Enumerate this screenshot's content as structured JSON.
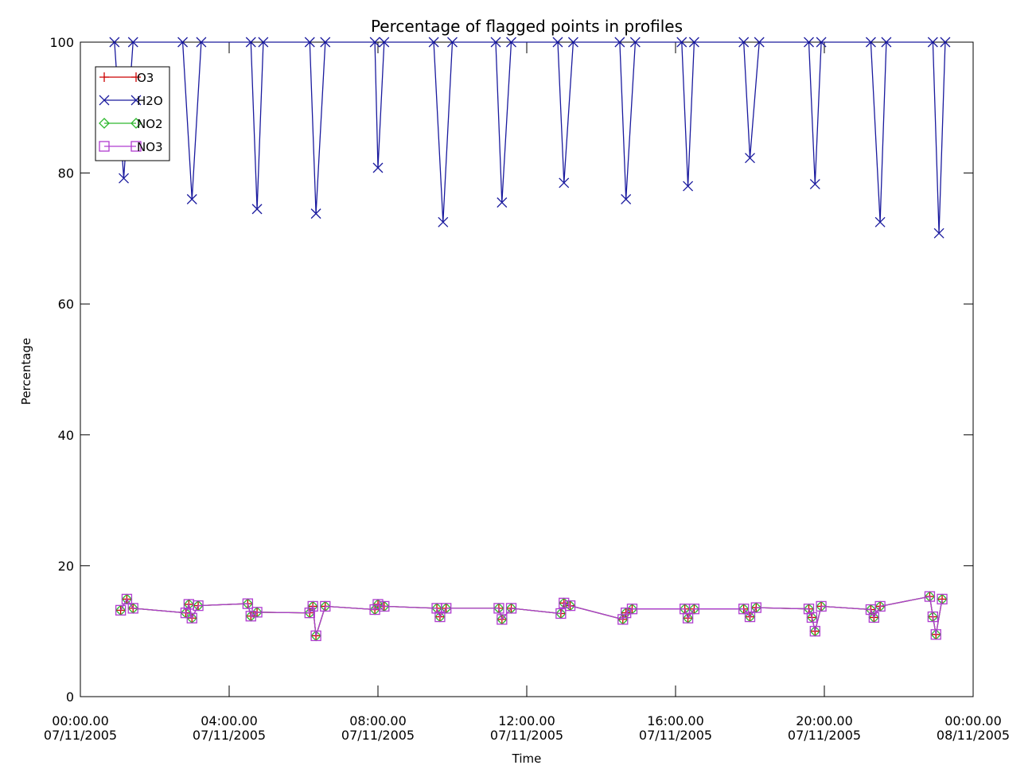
{
  "chart_data": {
    "type": "line",
    "title": "Percentage of flagged points in profiles",
    "xlabel": "Time",
    "ylabel": "Percentage",
    "xlim": [
      "07/11/2005 00:00",
      "08/11/2005 00:00"
    ],
    "ylim": [
      0,
      100
    ],
    "x_ticks": [
      {
        "time": "00:00.00",
        "date": "07/11/2005"
      },
      {
        "time": "04:00.00",
        "date": "07/11/2005"
      },
      {
        "time": "08:00.00",
        "date": "07/11/2005"
      },
      {
        "time": "12:00.00",
        "date": "07/11/2005"
      },
      {
        "time": "16:00.00",
        "date": "07/11/2005"
      },
      {
        "time": "20:00.00",
        "date": "07/11/2005"
      },
      {
        "time": "00:00.00",
        "date": "08/11/2005"
      }
    ],
    "y_ticks": [
      "0",
      "20",
      "40",
      "60",
      "80",
      "100"
    ],
    "grid": false,
    "legend_position": "top-left",
    "series": [
      {
        "name": "O3",
        "color": "#cc0000",
        "marker": "plus",
        "points": [
          [
            "07/11/2005 01:05",
            13.2
          ],
          [
            "07/11/2005 01:15",
            14.9
          ],
          [
            "07/11/2005 01:25",
            13.5
          ],
          [
            "07/11/2005 02:50",
            12.8
          ],
          [
            "07/11/2005 02:55",
            14.1
          ],
          [
            "07/11/2005 03:00",
            12.0
          ],
          [
            "07/11/2005 03:10",
            13.9
          ],
          [
            "07/11/2005 04:30",
            14.2
          ],
          [
            "07/11/2005 04:35",
            12.3
          ],
          [
            "07/11/2005 04:45",
            12.9
          ],
          [
            "07/11/2005 06:10",
            12.8
          ],
          [
            "07/11/2005 06:15",
            13.8
          ],
          [
            "07/11/2005 06:20",
            9.3
          ],
          [
            "07/11/2005 06:35",
            13.8
          ],
          [
            "07/11/2005 07:55",
            13.3
          ],
          [
            "07/11/2005 08:00",
            14.1
          ],
          [
            "07/11/2005 08:10",
            13.8
          ],
          [
            "07/11/2005 09:35",
            13.5
          ],
          [
            "07/11/2005 09:40",
            12.2
          ],
          [
            "07/11/2005 09:50",
            13.5
          ],
          [
            "07/11/2005 11:15",
            13.5
          ],
          [
            "07/11/2005 11:20",
            11.8
          ],
          [
            "07/11/2005 11:35",
            13.5
          ],
          [
            "07/11/2005 12:55",
            12.7
          ],
          [
            "07/11/2005 13:00",
            14.3
          ],
          [
            "07/11/2005 13:10",
            13.9
          ],
          [
            "07/11/2005 14:35",
            11.8
          ],
          [
            "07/11/2005 14:40",
            12.8
          ],
          [
            "07/11/2005 14:50",
            13.4
          ],
          [
            "07/11/2005 16:15",
            13.4
          ],
          [
            "07/11/2005 16:20",
            12.0
          ],
          [
            "07/11/2005 16:30",
            13.4
          ],
          [
            "07/11/2005 17:50",
            13.4
          ],
          [
            "07/11/2005 18:00",
            12.2
          ],
          [
            "07/11/2005 18:10",
            13.6
          ],
          [
            "07/11/2005 19:35",
            13.4
          ],
          [
            "07/11/2005 19:40",
            12.1
          ],
          [
            "07/11/2005 19:45",
            10.0
          ],
          [
            "07/11/2005 19:55",
            13.8
          ],
          [
            "07/11/2005 21:15",
            13.3
          ],
          [
            "07/11/2005 21:20",
            12.1
          ],
          [
            "07/11/2005 21:30",
            13.8
          ],
          [
            "07/11/2005 22:50",
            15.3
          ],
          [
            "07/11/2005 22:55",
            12.2
          ],
          [
            "07/11/2005 23:00",
            9.5
          ],
          [
            "07/11/2005 23:10",
            14.9
          ]
        ]
      },
      {
        "name": "H2O",
        "color": "#1a1a9e",
        "marker": "x",
        "points": [
          [
            "07/11/2005 00:55",
            100
          ],
          [
            "07/11/2005 01:10",
            79.2
          ],
          [
            "07/11/2005 01:25",
            100
          ],
          [
            "07/11/2005 02:45",
            100
          ],
          [
            "07/11/2005 03:00",
            76.0
          ],
          [
            "07/11/2005 03:15",
            100
          ],
          [
            "07/11/2005 04:35",
            100
          ],
          [
            "07/11/2005 04:45",
            74.5
          ],
          [
            "07/11/2005 04:55",
            100
          ],
          [
            "07/11/2005 06:10",
            100
          ],
          [
            "07/11/2005 06:20",
            73.8
          ],
          [
            "07/11/2005 06:35",
            100
          ],
          [
            "07/11/2005 07:55",
            100
          ],
          [
            "07/11/2005 08:00",
            80.8
          ],
          [
            "07/11/2005 08:10",
            100
          ],
          [
            "07/11/2005 09:30",
            100
          ],
          [
            "07/11/2005 09:45",
            72.5
          ],
          [
            "07/11/2005 10:00",
            100
          ],
          [
            "07/11/2005 11:10",
            100
          ],
          [
            "07/11/2005 11:20",
            75.5
          ],
          [
            "07/11/2005 11:35",
            100
          ],
          [
            "07/11/2005 12:50",
            100
          ],
          [
            "07/11/2005 13:00",
            78.5
          ],
          [
            "07/11/2005 13:15",
            100
          ],
          [
            "07/11/2005 14:30",
            100
          ],
          [
            "07/11/2005 14:40",
            76.0
          ],
          [
            "07/11/2005 14:55",
            100
          ],
          [
            "07/11/2005 16:10",
            100
          ],
          [
            "07/11/2005 16:20",
            78.0
          ],
          [
            "07/11/2005 16:30",
            100
          ],
          [
            "07/11/2005 17:50",
            100
          ],
          [
            "07/11/2005 18:00",
            82.3
          ],
          [
            "07/11/2005 18:15",
            100
          ],
          [
            "07/11/2005 19:35",
            100
          ],
          [
            "07/11/2005 19:45",
            78.3
          ],
          [
            "07/11/2005 19:55",
            100
          ],
          [
            "07/11/2005 21:15",
            100
          ],
          [
            "07/11/2005 21:30",
            72.5
          ],
          [
            "07/11/2005 21:40",
            100
          ],
          [
            "07/11/2005 22:55",
            100
          ],
          [
            "07/11/2005 23:05",
            70.8
          ],
          [
            "07/11/2005 23:15",
            100
          ]
        ]
      },
      {
        "name": "NO2",
        "color": "#2db82d",
        "marker": "diamond",
        "points": [
          [
            "07/11/2005 01:05",
            13.2
          ],
          [
            "07/11/2005 01:15",
            14.9
          ],
          [
            "07/11/2005 01:25",
            13.5
          ],
          [
            "07/11/2005 02:50",
            12.8
          ],
          [
            "07/11/2005 02:55",
            14.1
          ],
          [
            "07/11/2005 03:00",
            12.0
          ],
          [
            "07/11/2005 03:10",
            13.9
          ],
          [
            "07/11/2005 04:30",
            14.2
          ],
          [
            "07/11/2005 04:35",
            12.3
          ],
          [
            "07/11/2005 04:45",
            12.9
          ],
          [
            "07/11/2005 06:10",
            12.8
          ],
          [
            "07/11/2005 06:15",
            13.8
          ],
          [
            "07/11/2005 06:20",
            9.3
          ],
          [
            "07/11/2005 06:35",
            13.8
          ],
          [
            "07/11/2005 07:55",
            13.3
          ],
          [
            "07/11/2005 08:00",
            14.1
          ],
          [
            "07/11/2005 08:10",
            13.8
          ],
          [
            "07/11/2005 09:35",
            13.5
          ],
          [
            "07/11/2005 09:40",
            12.2
          ],
          [
            "07/11/2005 09:50",
            13.5
          ],
          [
            "07/11/2005 11:15",
            13.5
          ],
          [
            "07/11/2005 11:20",
            11.8
          ],
          [
            "07/11/2005 11:35",
            13.5
          ],
          [
            "07/11/2005 12:55",
            12.7
          ],
          [
            "07/11/2005 13:00",
            14.3
          ],
          [
            "07/11/2005 13:10",
            13.9
          ],
          [
            "07/11/2005 14:35",
            11.8
          ],
          [
            "07/11/2005 14:40",
            12.8
          ],
          [
            "07/11/2005 14:50",
            13.4
          ],
          [
            "07/11/2005 16:15",
            13.4
          ],
          [
            "07/11/2005 16:20",
            12.0
          ],
          [
            "07/11/2005 16:30",
            13.4
          ],
          [
            "07/11/2005 17:50",
            13.4
          ],
          [
            "07/11/2005 18:00",
            12.2
          ],
          [
            "07/11/2005 18:10",
            13.6
          ],
          [
            "07/11/2005 19:35",
            13.4
          ],
          [
            "07/11/2005 19:40",
            12.1
          ],
          [
            "07/11/2005 19:45",
            10.0
          ],
          [
            "07/11/2005 19:55",
            13.8
          ],
          [
            "07/11/2005 21:15",
            13.3
          ],
          [
            "07/11/2005 21:20",
            12.1
          ],
          [
            "07/11/2005 21:30",
            13.8
          ],
          [
            "07/11/2005 22:50",
            15.3
          ],
          [
            "07/11/2005 22:55",
            12.2
          ],
          [
            "07/11/2005 23:00",
            9.5
          ],
          [
            "07/11/2005 23:10",
            14.9
          ]
        ]
      },
      {
        "name": "NO3",
        "color": "#b03cd0",
        "marker": "square",
        "points": [
          [
            "07/11/2005 01:05",
            13.2
          ],
          [
            "07/11/2005 01:15",
            14.9
          ],
          [
            "07/11/2005 01:25",
            13.5
          ],
          [
            "07/11/2005 02:50",
            12.8
          ],
          [
            "07/11/2005 02:55",
            14.1
          ],
          [
            "07/11/2005 03:00",
            12.0
          ],
          [
            "07/11/2005 03:10",
            13.9
          ],
          [
            "07/11/2005 04:30",
            14.2
          ],
          [
            "07/11/2005 04:35",
            12.3
          ],
          [
            "07/11/2005 04:45",
            12.9
          ],
          [
            "07/11/2005 06:10",
            12.8
          ],
          [
            "07/11/2005 06:15",
            13.8
          ],
          [
            "07/11/2005 06:20",
            9.3
          ],
          [
            "07/11/2005 06:35",
            13.8
          ],
          [
            "07/11/2005 07:55",
            13.3
          ],
          [
            "07/11/2005 08:00",
            14.1
          ],
          [
            "07/11/2005 08:10",
            13.8
          ],
          [
            "07/11/2005 09:35",
            13.5
          ],
          [
            "07/11/2005 09:40",
            12.2
          ],
          [
            "07/11/2005 09:50",
            13.5
          ],
          [
            "07/11/2005 11:15",
            13.5
          ],
          [
            "07/11/2005 11:20",
            11.8
          ],
          [
            "07/11/2005 11:35",
            13.5
          ],
          [
            "07/11/2005 12:55",
            12.7
          ],
          [
            "07/11/2005 13:00",
            14.3
          ],
          [
            "07/11/2005 13:10",
            13.9
          ],
          [
            "07/11/2005 14:35",
            11.8
          ],
          [
            "07/11/2005 14:40",
            12.8
          ],
          [
            "07/11/2005 14:50",
            13.4
          ],
          [
            "07/11/2005 16:15",
            13.4
          ],
          [
            "07/11/2005 16:20",
            12.0
          ],
          [
            "07/11/2005 16:30",
            13.4
          ],
          [
            "07/11/2005 17:50",
            13.4
          ],
          [
            "07/11/2005 18:00",
            12.2
          ],
          [
            "07/11/2005 18:10",
            13.6
          ],
          [
            "07/11/2005 19:35",
            13.4
          ],
          [
            "07/11/2005 19:40",
            12.1
          ],
          [
            "07/11/2005 19:45",
            10.0
          ],
          [
            "07/11/2005 19:55",
            13.8
          ],
          [
            "07/11/2005 21:15",
            13.3
          ],
          [
            "07/11/2005 21:20",
            12.1
          ],
          [
            "07/11/2005 21:30",
            13.8
          ],
          [
            "07/11/2005 22:50",
            15.3
          ],
          [
            "07/11/2005 22:55",
            12.2
          ],
          [
            "07/11/2005 23:00",
            9.5
          ],
          [
            "07/11/2005 23:10",
            14.9
          ]
        ]
      }
    ]
  }
}
